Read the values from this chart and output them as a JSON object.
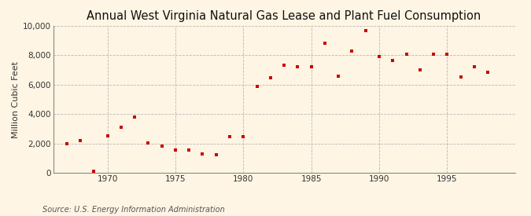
{
  "title": "Annual West Virginia Natural Gas Lease and Plant Fuel Consumption",
  "ylabel": "Million Cubic Feet",
  "source": "Source: U.S. Energy Information Administration",
  "background_color": "#FEF5E4",
  "marker_color": "#CC0000",
  "years": [
    1967,
    1968,
    1969,
    1970,
    1971,
    1972,
    1973,
    1974,
    1975,
    1976,
    1977,
    1978,
    1979,
    1980,
    1981,
    1982,
    1983,
    1984,
    1985,
    1986,
    1987,
    1988,
    1989,
    1990,
    1991,
    1992,
    1993,
    1994,
    1995,
    1996,
    1997,
    1998
  ],
  "values": [
    2000,
    2200,
    100,
    2500,
    3100,
    3800,
    2050,
    1800,
    1550,
    1550,
    1300,
    1250,
    2450,
    2450,
    5900,
    6450,
    7300,
    7200,
    7200,
    8800,
    6600,
    8300,
    9700,
    7900,
    7650,
    8100,
    7000,
    8100,
    8050,
    6550,
    7200,
    6850
  ],
  "xlim": [
    1966,
    2000
  ],
  "ylim": [
    0,
    10000
  ],
  "xticks": [
    1970,
    1975,
    1980,
    1985,
    1990,
    1995
  ],
  "yticks": [
    0,
    2000,
    4000,
    6000,
    8000,
    10000
  ],
  "ytick_labels": [
    "0",
    "2,000",
    "4,000",
    "6,000",
    "8,000",
    "10,000"
  ],
  "grid_color": "#AAAAAA",
  "title_fontsize": 10.5,
  "label_fontsize": 8,
  "tick_fontsize": 7.5,
  "source_fontsize": 7
}
